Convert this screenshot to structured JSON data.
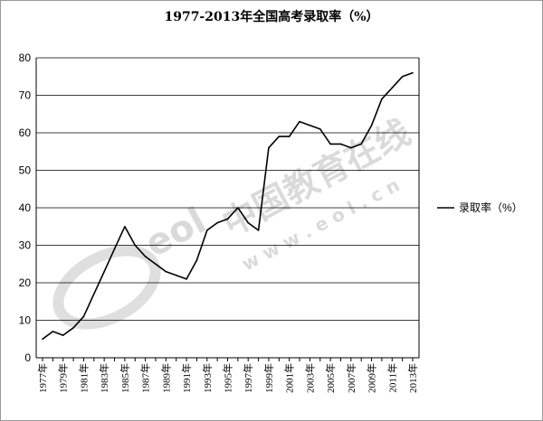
{
  "chart_data": {
    "type": "line",
    "title": "1977-2013年全国高考录取率（%）",
    "xlabel": "",
    "ylabel": "",
    "ylim": [
      0,
      80
    ],
    "yticks": [
      0,
      10,
      20,
      30,
      40,
      50,
      60,
      70,
      80
    ],
    "grid": "horizontal",
    "legend_position": "right",
    "x": [
      "1977年",
      "1978年",
      "1979年",
      "1980年",
      "1981年",
      "1982年",
      "1983年",
      "1984年",
      "1985年",
      "1986年",
      "1987年",
      "1988年",
      "1989年",
      "1990年",
      "1991年",
      "1992年",
      "1993年",
      "1994年",
      "1995年",
      "1996年",
      "1997年",
      "1998年",
      "1999年",
      "2000年",
      "2001年",
      "2002年",
      "2003年",
      "2004年",
      "2005年",
      "2006年",
      "2007年",
      "2008年",
      "2009年",
      "2010年",
      "2011年",
      "2012年",
      "2013年"
    ],
    "x_tick_labels": [
      "1977年",
      "1979年",
      "1981年",
      "1983年",
      "1985年",
      "1987年",
      "1989年",
      "1991年",
      "1993年",
      "1995年",
      "1997年",
      "1999年",
      "2001年",
      "2003年",
      "2005年",
      "2007年",
      "2009年",
      "2011年",
      "2013年"
    ],
    "series": [
      {
        "name": "录取率（%）",
        "color": "#000000",
        "values": [
          5,
          7,
          6,
          8,
          11,
          17,
          23,
          29,
          35,
          30,
          27,
          25,
          23,
          22,
          21,
          26,
          34,
          36,
          37,
          40,
          36,
          34,
          56,
          59,
          59,
          63,
          62,
          61,
          57,
          57,
          56,
          57,
          62,
          69,
          72,
          75,
          76
        ]
      }
    ]
  },
  "watermark": {
    "cn": "中国教育在线",
    "url": "w w w . e o l . c n",
    "logo": "eol"
  }
}
